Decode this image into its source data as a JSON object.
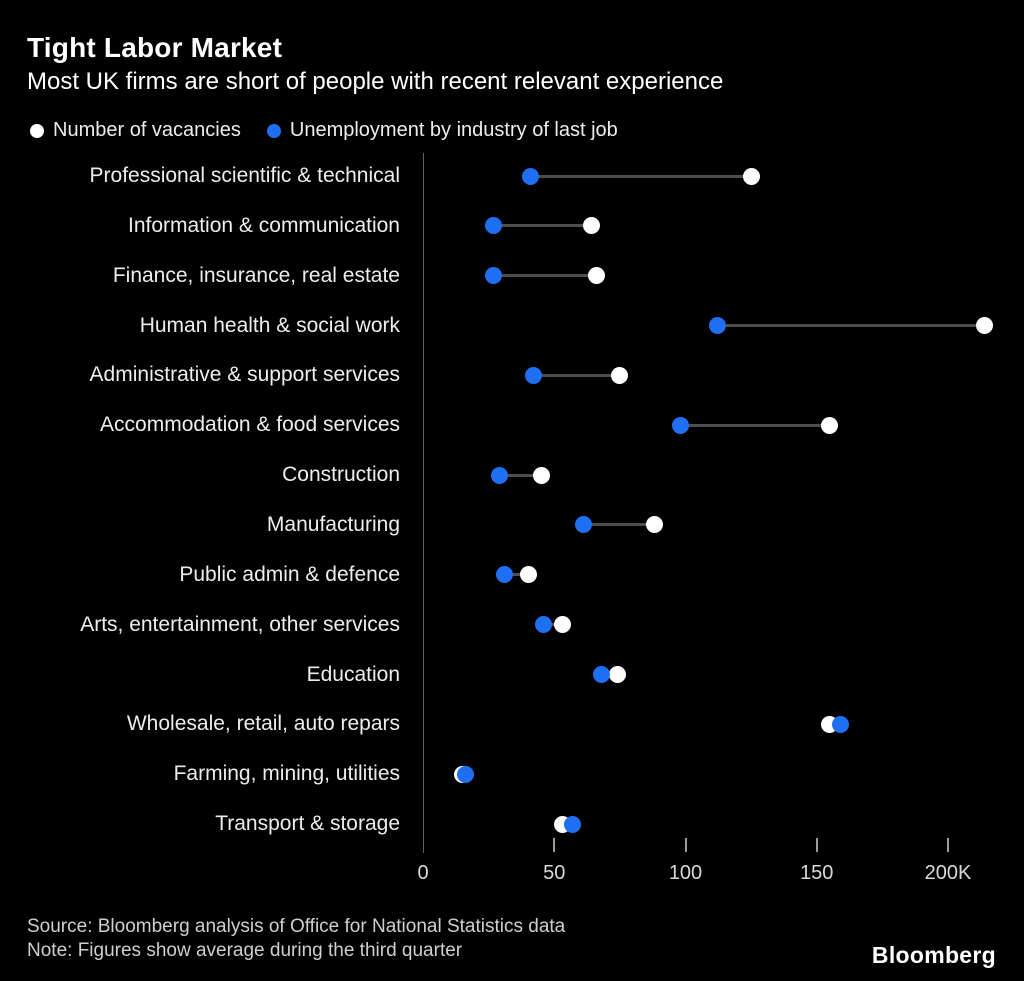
{
  "header": {
    "title": "Tight Labor Market",
    "subtitle": "Most UK firms are short of people with recent relevant experience"
  },
  "legend": [
    {
      "label": "Number of vacancies",
      "color": "#ffffff"
    },
    {
      "label": "Unemployment by industry of last job",
      "color": "#1f6ff2"
    }
  ],
  "chart_data": {
    "type": "scatter",
    "variant": "dumbbell",
    "title": "Tight Labor Market",
    "subtitle": "Most UK firms are short of people with recent relevant experience",
    "unit": "thousands",
    "categories": [
      "Professional scientific & technical",
      "Information & communication",
      "Finance, insurance, real estate",
      "Human health & social work",
      "Administrative & support services",
      "Accommodation & food services",
      "Construction",
      "Manufacturing",
      "Public admin & defence",
      "Arts, entertainment, other services",
      "Education",
      "Wholesale, retail, auto repars",
      "Farming, mining, utilities",
      "Transport & storage"
    ],
    "series": [
      {
        "name": "Number of vacancies",
        "color": "#ffffff",
        "values": [
          125,
          64,
          66,
          214,
          75,
          155,
          45,
          88,
          40,
          53,
          74,
          155,
          15,
          53
        ]
      },
      {
        "name": "Unemployment by industry of last job",
        "color": "#1f6ff2",
        "values": [
          41,
          27,
          27,
          112,
          42,
          98,
          29,
          61,
          31,
          46,
          68,
          159,
          16,
          57
        ]
      }
    ],
    "x_axis": {
      "xlim": [
        0,
        224
      ],
      "ticks": [
        0,
        50,
        100,
        150,
        200
      ],
      "tick_labels": [
        "0",
        "50",
        "100",
        "150",
        "200K"
      ]
    },
    "grid": "off",
    "legend_position": "top-left"
  },
  "footer": {
    "source": "Source: Bloomberg analysis of Office for National Statistics data",
    "note": "Note: Figures show average during the third quarter",
    "logo": "Bloomberg"
  }
}
